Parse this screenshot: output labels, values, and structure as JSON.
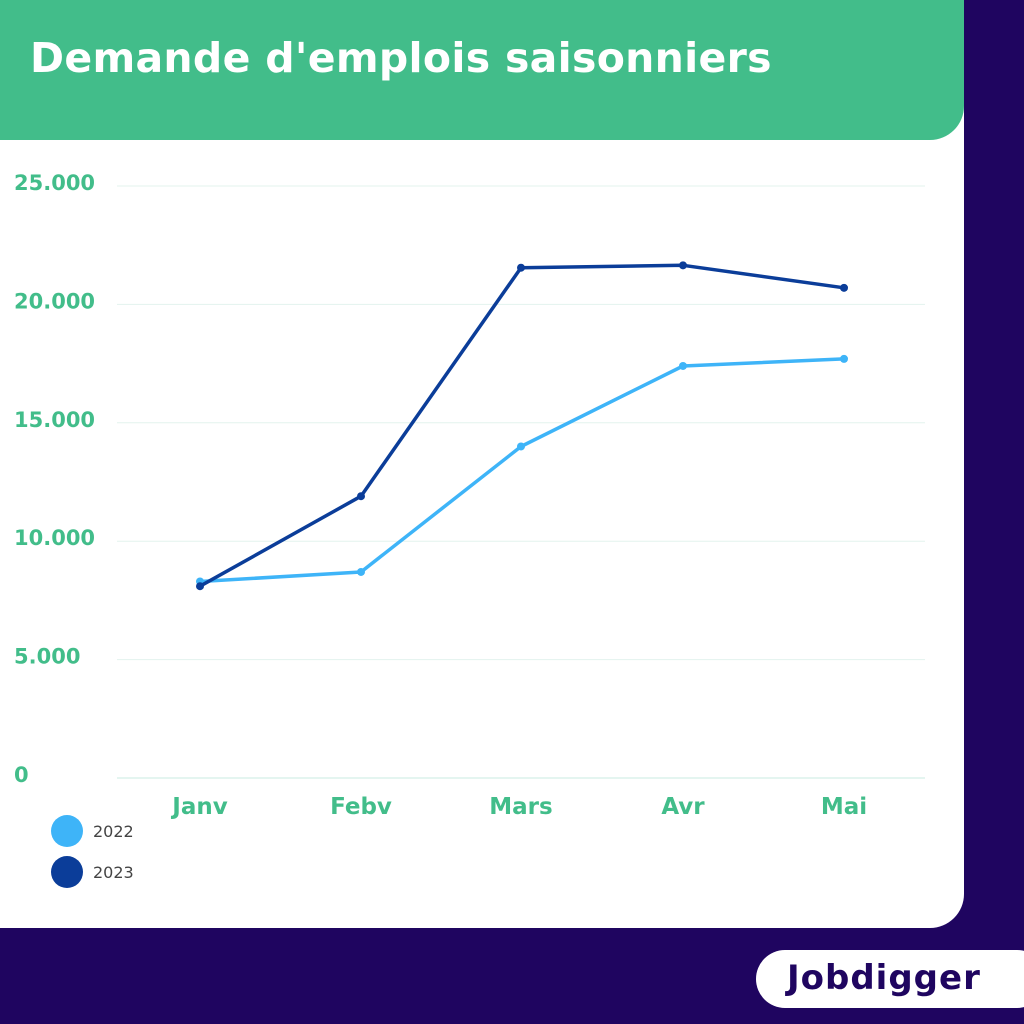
{
  "header": {
    "title": "Demande d'emplois saisonniers"
  },
  "brand": {
    "logo_text": "Jobdigger"
  },
  "colors": {
    "header_bg": "#42bd8a",
    "page_bg": "#1f0560",
    "tick_label": "#42bd8a",
    "gridline": "#e3f3ee",
    "series_2022": "#3eb4f8",
    "series_2023": "#0b3d99"
  },
  "chart_data": {
    "type": "line",
    "title": "Demande d'emplois saisonniers",
    "xlabel": "",
    "ylabel": "",
    "categories": [
      "Janv",
      "Febv",
      "Mars",
      "Avr",
      "Mai"
    ],
    "series": [
      {
        "name": "2022",
        "color": "#3eb4f8",
        "values": [
          8300,
          8700,
          14000,
          17400,
          17700
        ]
      },
      {
        "name": "2023",
        "color": "#0b3d99",
        "values": [
          8100,
          11900,
          21550,
          21650,
          20700
        ]
      }
    ],
    "ylim": [
      0,
      25000
    ],
    "yticks": [
      0,
      5000,
      10000,
      15000,
      20000,
      25000
    ],
    "ytick_labels": [
      "0",
      "5.000",
      "10.000",
      "15.000",
      "20.000",
      "25.000"
    ],
    "grid": true,
    "legend_position": "bottom-left"
  }
}
